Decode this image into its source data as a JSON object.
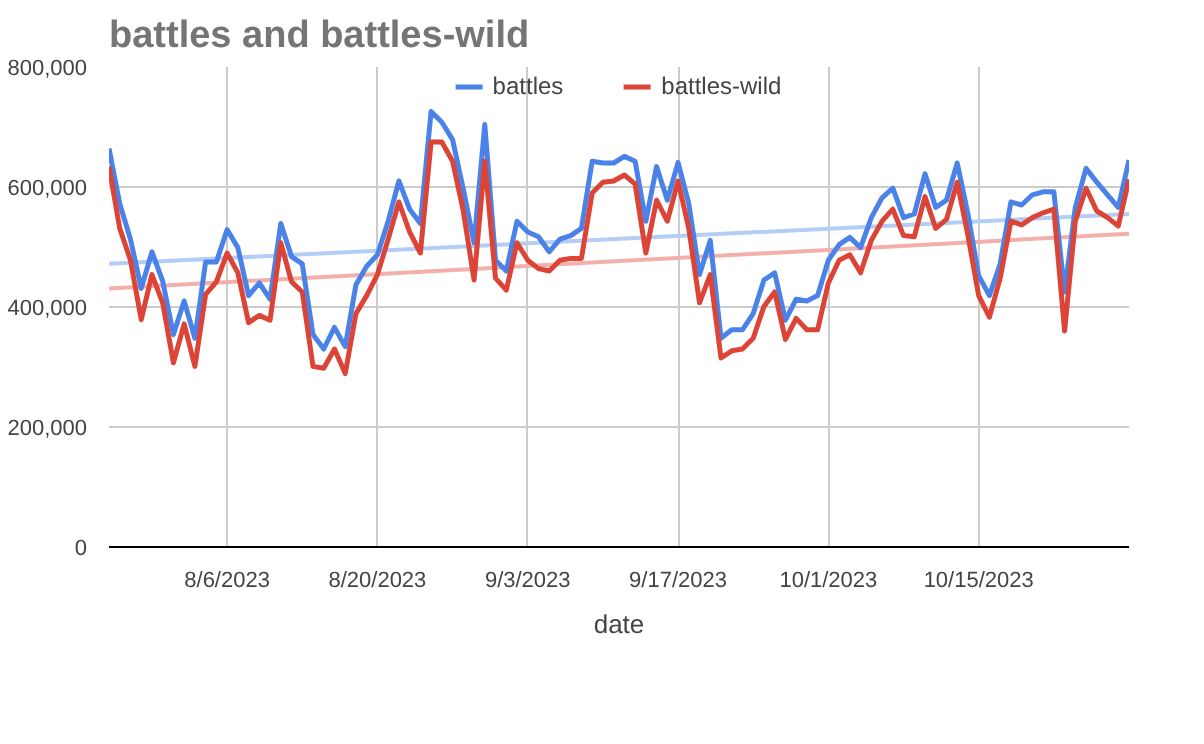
{
  "chart_data": {
    "type": "line",
    "title": "battles and battles-wild",
    "xlabel": "date",
    "x": [
      "2023-07-26",
      "2023-07-27",
      "2023-07-28",
      "2023-07-29",
      "2023-07-30",
      "2023-07-31",
      "2023-08-01",
      "2023-08-02",
      "2023-08-03",
      "2023-08-04",
      "2023-08-05",
      "2023-08-06",
      "2023-08-07",
      "2023-08-08",
      "2023-08-09",
      "2023-08-10",
      "2023-08-11",
      "2023-08-12",
      "2023-08-13",
      "2023-08-14",
      "2023-08-15",
      "2023-08-16",
      "2023-08-17",
      "2023-08-18",
      "2023-08-19",
      "2023-08-20",
      "2023-08-21",
      "2023-08-22",
      "2023-08-23",
      "2023-08-24",
      "2023-08-25",
      "2023-08-26",
      "2023-08-27",
      "2023-08-28",
      "2023-08-29",
      "2023-08-30",
      "2023-08-31",
      "2023-09-01",
      "2023-09-02",
      "2023-09-03",
      "2023-09-04",
      "2023-09-05",
      "2023-09-06",
      "2023-09-07",
      "2023-09-08",
      "2023-09-09",
      "2023-09-10",
      "2023-09-11",
      "2023-09-12",
      "2023-09-13",
      "2023-09-14",
      "2023-09-15",
      "2023-09-16",
      "2023-09-17",
      "2023-09-18",
      "2023-09-19",
      "2023-09-20",
      "2023-09-21",
      "2023-09-22",
      "2023-09-23",
      "2023-09-24",
      "2023-09-25",
      "2023-09-26",
      "2023-09-27",
      "2023-09-28",
      "2023-09-29",
      "2023-09-30",
      "2023-10-01",
      "2023-10-02",
      "2023-10-03",
      "2023-10-04",
      "2023-10-05",
      "2023-10-06",
      "2023-10-07",
      "2023-10-08",
      "2023-10-09",
      "2023-10-10",
      "2023-10-11",
      "2023-10-12",
      "2023-10-13",
      "2023-10-14",
      "2023-10-15",
      "2023-10-16",
      "2023-10-17",
      "2023-10-18",
      "2023-10-19",
      "2023-10-20",
      "2023-10-21",
      "2023-10-22",
      "2023-10-23",
      "2023-10-24",
      "2023-10-25",
      "2023-10-26",
      "2023-10-27",
      "2023-10-28",
      "2023-10-29"
    ],
    "series": [
      {
        "name": "battles",
        "color": "#4a82e8",
        "values": [
          664000,
          572000,
          513000,
          431000,
          492000,
          443000,
          354000,
          410000,
          348000,
          475000,
          475000,
          529000,
          499000,
          419000,
          440000,
          413000,
          539000,
          484000,
          472000,
          354000,
          330000,
          366000,
          334000,
          437000,
          468000,
          487000,
          543000,
          610000,
          563000,
          539000,
          726000,
          708000,
          679000,
          596000,
          507000,
          704000,
          478000,
          460000,
          543000,
          525000,
          517000,
          492000,
          513000,
          519000,
          531000,
          643000,
          640000,
          640000,
          651000,
          643000,
          543000,
          634000,
          578000,
          641000,
          572000,
          454000,
          511000,
          348000,
          362000,
          362000,
          389000,
          445000,
          457000,
          378000,
          413000,
          410000,
          419000,
          478000,
          504000,
          516000,
          499000,
          549000,
          582000,
          598000,
          549000,
          555000,
          622000,
          566000,
          578000,
          640000,
          555000,
          452000,
          419000,
          472000,
          575000,
          570000,
          587000,
          592000,
          592000,
          425000,
          566000,
          631000,
          608000,
          587000,
          566000,
          645000
        ]
      },
      {
        "name": "battles-wild",
        "color": "#dc4437",
        "values": [
          634000,
          531000,
          478000,
          379000,
          454000,
          407000,
          307000,
          372000,
          301000,
          421000,
          442000,
          490000,
          457000,
          374000,
          386000,
          378000,
          507000,
          442000,
          425000,
          301000,
          298000,
          330000,
          289000,
          389000,
          419000,
          454000,
          513000,
          575000,
          525000,
          490000,
          675000,
          675000,
          643000,
          560000,
          445000,
          643000,
          448000,
          428000,
          507000,
          478000,
          464000,
          460000,
          478000,
          481000,
          481000,
          590000,
          608000,
          610000,
          620000,
          605000,
          490000,
          578000,
          543000,
          610000,
          531000,
          407000,
          454000,
          315000,
          327000,
          330000,
          348000,
          401000,
          425000,
          346000,
          381000,
          362000,
          362000,
          440000,
          478000,
          487000,
          457000,
          511000,
          543000,
          563000,
          519000,
          517000,
          584000,
          531000,
          546000,
          608000,
          519000,
          419000,
          383000,
          448000,
          543000,
          537000,
          549000,
          557000,
          563000,
          360000,
          543000,
          598000,
          560000,
          549000,
          535000,
          613000
        ]
      },
      {
        "color": "#b3cdf6",
        "x": [
          "2023-07-26",
          "2023-10-29"
        ],
        "values": [
          472000,
          555000
        ]
      },
      {
        "color": "#f3b0aa",
        "x": [
          "2023-07-26",
          "2023-10-29"
        ],
        "values": [
          431000,
          522000
        ]
      }
    ],
    "xlim": [
      "2023-07-26",
      "2023-10-29"
    ],
    "xticks": [
      {
        "value": "2023-08-06",
        "label": "8/6/2023"
      },
      {
        "value": "2023-08-20",
        "label": "8/20/2023"
      },
      {
        "value": "2023-09-03",
        "label": "9/3/2023"
      },
      {
        "value": "2023-09-17",
        "label": "9/17/2023"
      },
      {
        "value": "2023-10-01",
        "label": "10/1/2023"
      },
      {
        "value": "2023-10-15",
        "label": "10/15/2023"
      }
    ],
    "ylim": [
      0,
      800000
    ],
    "yticks": [
      0,
      {
        "value": 200000,
        "label": "200,000"
      },
      {
        "value": 400000,
        "label": "400,000"
      },
      {
        "value": 600000,
        "label": "600,000"
      },
      {
        "value": 800000,
        "label": "800,000"
      }
    ],
    "grid": true,
    "legend": "top"
  }
}
